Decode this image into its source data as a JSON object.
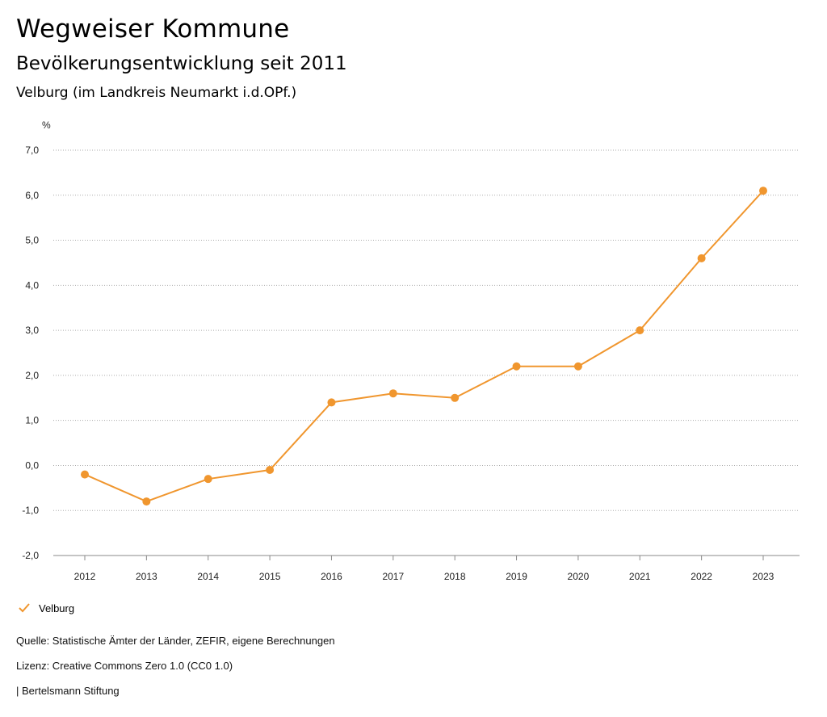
{
  "header": {
    "title": "Wegweiser Kommune",
    "subtitle": "Bevölkerungsentwicklung seit 2011",
    "region": "Velburg (im Landkreis Neumarkt i.d.OPf.)"
  },
  "chart_data": {
    "type": "line",
    "ylabel": "%",
    "ylim": [
      -2.0,
      7.0
    ],
    "yticks": [
      "7,0",
      "6,0",
      "5,0",
      "4,0",
      "3,0",
      "2,0",
      "1,0",
      "0,0",
      "-1,0",
      "-2,0"
    ],
    "categories": [
      "2012",
      "2013",
      "2014",
      "2015",
      "2016",
      "2017",
      "2018",
      "2019",
      "2020",
      "2021",
      "2022",
      "2023"
    ],
    "series": [
      {
        "name": "Velburg",
        "color": "#f0962e",
        "values": [
          -0.2,
          -0.8,
          -0.3,
          -0.1,
          1.4,
          1.6,
          1.5,
          2.2,
          2.2,
          3.0,
          4.6,
          6.1
        ]
      }
    ],
    "grid": true,
    "legend": "bottom-left"
  },
  "legend": {
    "label": "Velburg",
    "icon": "check-icon"
  },
  "footer": {
    "source": "Quelle: Statistische Ämter der Länder, ZEFIR, eigene Berechnungen",
    "license": "Lizenz: Creative Commons Zero 1.0 (CC0 1.0)",
    "brand": "| Bertelsmann Stiftung"
  }
}
